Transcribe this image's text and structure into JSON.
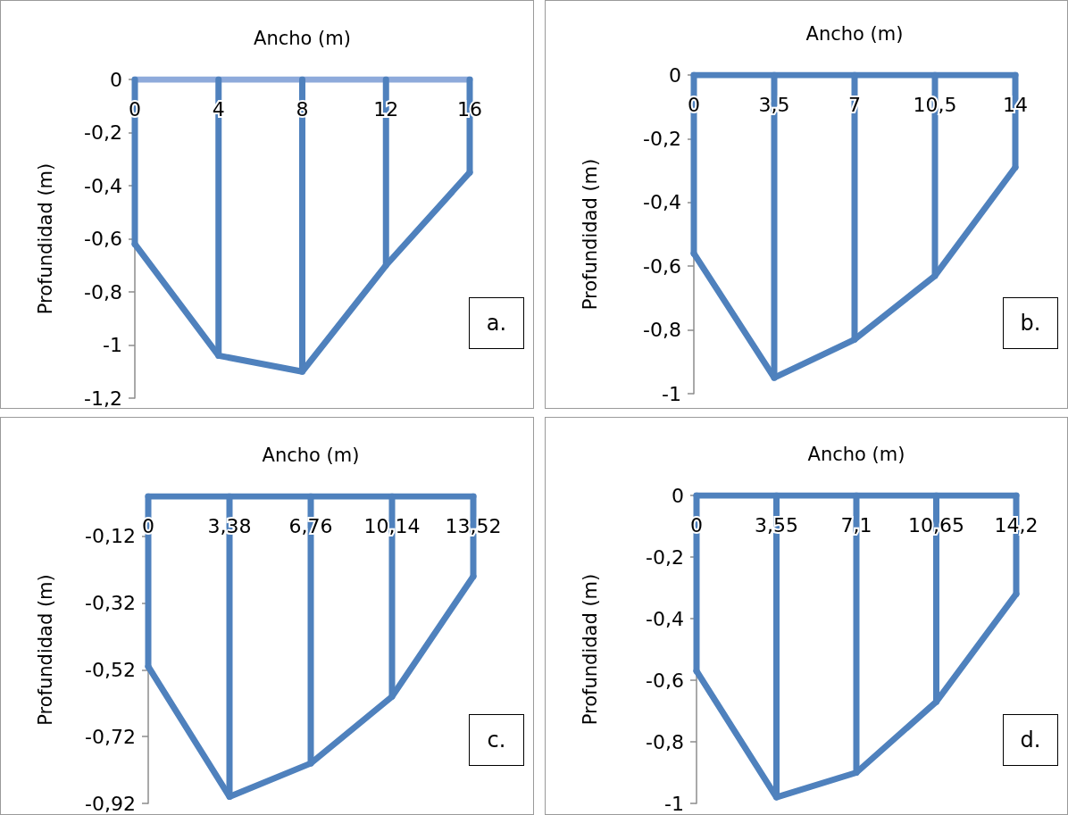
{
  "chart_data": [
    {
      "type": "line",
      "xlabel": "Ancho (m)",
      "ylabel": "Profundidad (m)",
      "annotations": [
        "a."
      ],
      "xlim": [
        0,
        16
      ],
      "xticks": [
        0,
        4,
        8,
        12,
        16
      ],
      "ylim": [
        -1.2,
        0
      ],
      "yticks": [
        {
          "value": -1.2,
          "label": "-1,2"
        },
        {
          "value": -1,
          "label": "-1"
        },
        {
          "value": -0.8,
          "label": "-0,8"
        },
        {
          "value": -0.6,
          "label": "-0,6"
        },
        {
          "value": -0.4,
          "label": "-0,4"
        },
        {
          "value": -0.2,
          "label": "-0,2"
        },
        {
          "value": 0,
          "label": "0"
        }
      ],
      "grid": false,
      "marker": "none",
      "line_style": "solid",
      "series": [
        {
          "color": "#8eaadb",
          "x": [
            0,
            16
          ],
          "values": [
            0,
            0
          ]
        },
        {
          "color": "#4f81bd",
          "x": [
            0,
            0
          ],
          "values": [
            0,
            -0.62
          ]
        },
        {
          "color": "#4f81bd",
          "x": [
            4,
            4
          ],
          "values": [
            0,
            -1.04
          ]
        },
        {
          "color": "#4f81bd",
          "x": [
            8,
            8
          ],
          "values": [
            0,
            -1.1
          ]
        },
        {
          "color": "#4f81bd",
          "x": [
            12,
            12
          ],
          "values": [
            0,
            -0.7
          ]
        },
        {
          "color": "#4f81bd",
          "x": [
            16,
            16
          ],
          "values": [
            0,
            -0.35
          ]
        },
        {
          "color": "#4f81bd",
          "x": [
            0,
            4,
            8,
            12,
            16
          ],
          "values": [
            -0.62,
            -1.04,
            -1.1,
            -0.7,
            -0.35
          ]
        }
      ]
    },
    {
      "type": "line",
      "xlabel": "Ancho (m)",
      "ylabel": "Profundidad (m)",
      "annotations": [
        "b."
      ],
      "xlim": [
        0,
        14
      ],
      "xticks": [
        0,
        {
          "value": 3.5,
          "label": "3,5"
        },
        7,
        {
          "value": 10.5,
          "label": "10,5"
        },
        14
      ],
      "ylim": [
        -1,
        0
      ],
      "yticks": [
        -1,
        {
          "value": -0.8,
          "label": "-0,8"
        },
        {
          "value": -0.6,
          "label": "-0,6"
        },
        {
          "value": -0.4,
          "label": "-0,4"
        },
        {
          "value": -0.2,
          "label": "-0,2"
        },
        {
          "value": 0,
          "label": "0"
        }
      ],
      "grid": false,
      "marker": "none",
      "line_style": "solid",
      "series": [
        {
          "color": "#4f81bd",
          "x": [
            0,
            14
          ],
          "values": [
            0,
            0
          ]
        },
        {
          "color": "#4f81bd",
          "x": [
            0,
            0
          ],
          "values": [
            0,
            -0.56
          ]
        },
        {
          "color": "#4f81bd",
          "x": [
            3.5,
            3.5
          ],
          "values": [
            0,
            -0.95
          ]
        },
        {
          "color": "#4f81bd",
          "x": [
            7,
            7
          ],
          "values": [
            0,
            -0.83
          ]
        },
        {
          "color": "#4f81bd",
          "x": [
            10.5,
            10.5
          ],
          "values": [
            0,
            -0.63
          ]
        },
        {
          "color": "#4f81bd",
          "x": [
            14,
            14
          ],
          "values": [
            0,
            -0.29
          ]
        },
        {
          "color": "#4f81bd",
          "x": [
            0,
            3.5,
            7,
            10.5,
            14
          ],
          "values": [
            -0.56,
            -0.95,
            -0.83,
            -0.63,
            -0.29
          ]
        }
      ]
    },
    {
      "type": "line",
      "xlabel": "Ancho (m)",
      "ylabel": "Profundidad (m)",
      "annotations": [
        "c."
      ],
      "xlim": [
        0,
        13.52
      ],
      "xticks": [
        0,
        {
          "value": 3.38,
          "label": "3,38"
        },
        {
          "value": 6.76,
          "label": "6,76"
        },
        {
          "value": 10.14,
          "label": "10,14"
        },
        {
          "value": 13.52,
          "label": "13,52"
        }
      ],
      "ylim": [
        -0.92,
        0
      ],
      "yticks": [
        {
          "value": -0.92,
          "label": "-0,92"
        },
        {
          "value": -0.72,
          "label": "-0,72"
        },
        {
          "value": -0.52,
          "label": "-0,52"
        },
        {
          "value": -0.32,
          "label": "-0,32"
        },
        {
          "value": -0.12,
          "label": "-0,12"
        }
      ],
      "grid": false,
      "marker": "none",
      "line_style": "solid",
      "series": [
        {
          "color": "#4f81bd",
          "x": [
            0,
            13.52
          ],
          "values": [
            0,
            0
          ]
        },
        {
          "color": "#4f81bd",
          "x": [
            0,
            0
          ],
          "values": [
            0,
            -0.51
          ]
        },
        {
          "color": "#4f81bd",
          "x": [
            3.38,
            3.38
          ],
          "values": [
            0,
            -0.9
          ]
        },
        {
          "color": "#4f81bd",
          "x": [
            6.76,
            6.76
          ],
          "values": [
            0,
            -0.8
          ]
        },
        {
          "color": "#4f81bd",
          "x": [
            10.14,
            10.14
          ],
          "values": [
            0,
            -0.6
          ]
        },
        {
          "color": "#4f81bd",
          "x": [
            13.52,
            13.52
          ],
          "values": [
            0,
            -0.24
          ]
        },
        {
          "color": "#4f81bd",
          "x": [
            0,
            3.38,
            6.76,
            10.14,
            13.52
          ],
          "values": [
            -0.51,
            -0.9,
            -0.8,
            -0.6,
            -0.24
          ]
        }
      ]
    },
    {
      "type": "line",
      "xlabel": "Ancho (m)",
      "ylabel": "Profundidad (m)",
      "annotations": [
        "d."
      ],
      "xlim": [
        0,
        14.2
      ],
      "xticks": [
        0,
        {
          "value": 3.55,
          "label": "3,55"
        },
        {
          "value": 7.1,
          "label": "7,1"
        },
        {
          "value": 10.65,
          "label": "10,65"
        },
        {
          "value": 14.2,
          "label": "14,2"
        }
      ],
      "ylim": [
        -1,
        0
      ],
      "yticks": [
        -1,
        {
          "value": -0.8,
          "label": "-0,8"
        },
        {
          "value": -0.6,
          "label": "-0,6"
        },
        {
          "value": -0.4,
          "label": "-0,4"
        },
        {
          "value": -0.2,
          "label": "-0,2"
        },
        {
          "value": 0,
          "label": "0"
        }
      ],
      "grid": false,
      "marker": "none",
      "line_style": "solid",
      "series": [
        {
          "color": "#4f81bd",
          "x": [
            0,
            14.2
          ],
          "values": [
            0,
            0
          ]
        },
        {
          "color": "#4f81bd",
          "x": [
            0,
            0
          ],
          "values": [
            0,
            -0.57
          ]
        },
        {
          "color": "#4f81bd",
          "x": [
            3.55,
            3.55
          ],
          "values": [
            0,
            -0.98
          ]
        },
        {
          "color": "#4f81bd",
          "x": [
            7.1,
            7.1
          ],
          "values": [
            0,
            -0.9
          ]
        },
        {
          "color": "#4f81bd",
          "x": [
            10.65,
            10.65
          ],
          "values": [
            0,
            -0.67
          ]
        },
        {
          "color": "#4f81bd",
          "x": [
            14.2,
            14.2
          ],
          "values": [
            0,
            -0.32
          ]
        },
        {
          "color": "#4f81bd",
          "x": [
            0,
            3.55,
            7.1,
            10.65,
            14.2
          ],
          "values": [
            -0.57,
            -0.98,
            -0.9,
            -0.67,
            -0.32
          ]
        }
      ]
    }
  ]
}
